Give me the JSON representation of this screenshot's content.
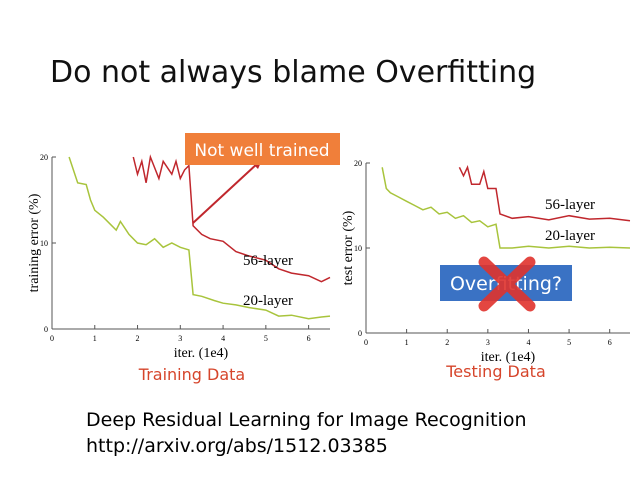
{
  "title": "Do not always blame Overfitting",
  "chart_data": [
    {
      "type": "line",
      "ylabel": "training error (%)",
      "xlabel": "iter. (1e4)",
      "caption": "Training Data",
      "annotation": "Not well trained",
      "xlim": [
        0,
        6.5
      ],
      "ylim": [
        0,
        20
      ],
      "xticks": [
        0,
        1,
        2,
        3,
        4,
        5,
        6
      ],
      "yticks": [
        0,
        10,
        20
      ],
      "series": [
        {
          "name": "56-layer",
          "color": "#c0272d",
          "x": [
            1.9,
            2.0,
            2.1,
            2.2,
            2.3,
            2.5,
            2.6,
            2.8,
            2.9,
            3.0,
            3.1,
            3.2,
            3.3,
            3.5,
            3.7,
            4.0,
            4.3,
            4.6,
            5.0,
            5.3,
            5.6,
            6.0,
            6.3,
            6.5
          ],
          "values": [
            20,
            18,
            19.5,
            17,
            20,
            17.5,
            19.5,
            18,
            19.5,
            17.5,
            18.5,
            19,
            12,
            11,
            10.5,
            10.2,
            9,
            8.5,
            8,
            7,
            6.5,
            6.2,
            5.5,
            6
          ]
        },
        {
          "name": "20-layer",
          "color": "#a8c43c",
          "x": [
            0.4,
            0.6,
            0.8,
            0.9,
            1.0,
            1.2,
            1.4,
            1.5,
            1.6,
            1.8,
            2.0,
            2.2,
            2.4,
            2.6,
            2.8,
            3.0,
            3.2,
            3.3,
            3.5,
            3.8,
            4.0,
            4.3,
            4.6,
            5.0,
            5.3,
            5.6,
            6.0,
            6.3,
            6.5
          ],
          "values": [
            20,
            17,
            16.8,
            15,
            13.8,
            13,
            12,
            11.5,
            12.5,
            11,
            10,
            9.8,
            10.5,
            9.5,
            10,
            9.5,
            9.2,
            4,
            3.8,
            3.3,
            3,
            2.8,
            2.5,
            2.2,
            1.5,
            1.6,
            1.2,
            1.4,
            1.5
          ]
        }
      ]
    },
    {
      "type": "line",
      "ylabel": "test error (%)",
      "xlabel": "iter. (1e4)",
      "caption": "Testing Data",
      "annotation": "Overfitting?",
      "xlim": [
        0,
        6.5
      ],
      "ylim": [
        0,
        20
      ],
      "xticks": [
        0,
        1,
        2,
        3,
        4,
        5,
        6
      ],
      "yticks": [
        0,
        10,
        20
      ],
      "series": [
        {
          "name": "56-layer",
          "color": "#c0272d",
          "x": [
            2.3,
            2.4,
            2.5,
            2.6,
            2.8,
            2.9,
            3.0,
            3.2,
            3.3,
            3.6,
            4.0,
            4.5,
            5.0,
            5.5,
            6.0,
            6.5
          ],
          "values": [
            19.5,
            18.5,
            19.5,
            17.5,
            17.5,
            19,
            17,
            17,
            14,
            13.5,
            13.7,
            13.3,
            13.8,
            13.4,
            13.5,
            13.2
          ]
        },
        {
          "name": "20-layer",
          "color": "#a8c43c",
          "x": [
            0.4,
            0.5,
            0.6,
            0.8,
            1.0,
            1.2,
            1.4,
            1.6,
            1.8,
            2.0,
            2.2,
            2.4,
            2.6,
            2.8,
            3.0,
            3.2,
            3.3,
            3.6,
            4.0,
            4.5,
            5.0,
            5.5,
            6.0,
            6.5
          ],
          "values": [
            19.5,
            17,
            16.5,
            16,
            15.5,
            15,
            14.5,
            14.8,
            14,
            14.2,
            13.5,
            13.8,
            13,
            13.2,
            12.5,
            12.8,
            10,
            10,
            10.2,
            10,
            10.2,
            10,
            10.1,
            10
          ]
        }
      ]
    }
  ],
  "reference": {
    "paper": "Deep Residual Learning for Image Recognition",
    "url": "http://arxiv.org/abs/1512.03385"
  }
}
